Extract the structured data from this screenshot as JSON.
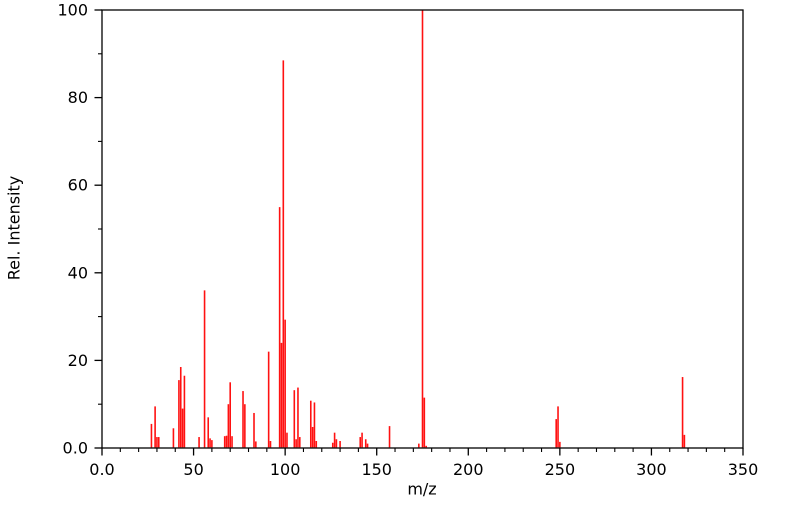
{
  "chart_data": {
    "type": "bar",
    "variant": "mass-spectrum",
    "title": "",
    "xlabel": "m/z",
    "ylabel": "Rel. Intensity",
    "xlim": [
      0,
      350
    ],
    "ylim": [
      0,
      100
    ],
    "x_major_tick_step": 50,
    "x_minor_tick_step": 10,
    "y_major_tick_step": 20,
    "y_minor_tick_step": 10,
    "x_tick_values": [
      0,
      50,
      100,
      150,
      200,
      250,
      300,
      350
    ],
    "x_tick_labels": [
      "0.0",
      "50",
      "100",
      "150",
      "200",
      "250",
      "300",
      "350"
    ],
    "y_tick_values": [
      0,
      20,
      40,
      60,
      80,
      100
    ],
    "y_tick_labels": [
      "0.0",
      "20",
      "40",
      "60",
      "80",
      "100"
    ],
    "grid": "off",
    "legend": "none",
    "bar_color": "#ff1111",
    "axis_color": "#000000",
    "background": "#ffffff",
    "peaks": [
      [
        27,
        5.5
      ],
      [
        29,
        9.5
      ],
      [
        30,
        2.5
      ],
      [
        31,
        2.5
      ],
      [
        39,
        4.5
      ],
      [
        42,
        15.5
      ],
      [
        43,
        18.5
      ],
      [
        44,
        9
      ],
      [
        45,
        16.5
      ],
      [
        53,
        2.5
      ],
      [
        56,
        36
      ],
      [
        58,
        7
      ],
      [
        59,
        2.2
      ],
      [
        60,
        1.8
      ],
      [
        67,
        2.7
      ],
      [
        68,
        2.8
      ],
      [
        69,
        10
      ],
      [
        70,
        15
      ],
      [
        71,
        2.7
      ],
      [
        77,
        13
      ],
      [
        78,
        10
      ],
      [
        83,
        8
      ],
      [
        84,
        1.5
      ],
      [
        91,
        22
      ],
      [
        92,
        1.6
      ],
      [
        97,
        55
      ],
      [
        98,
        24
      ],
      [
        99,
        88.5
      ],
      [
        100,
        29.3
      ],
      [
        101,
        3.5
      ],
      [
        105,
        13.2
      ],
      [
        106,
        2
      ],
      [
        107,
        13.8
      ],
      [
        108,
        2.5
      ],
      [
        114,
        10.8
      ],
      [
        115,
        4.8
      ],
      [
        116,
        10.4
      ],
      [
        117,
        1.6
      ],
      [
        126,
        1.2
      ],
      [
        127,
        3.5
      ],
      [
        128,
        2
      ],
      [
        130,
        1.6
      ],
      [
        141,
        2.5
      ],
      [
        142,
        3.5
      ],
      [
        144,
        2
      ],
      [
        145,
        1
      ],
      [
        157,
        5
      ],
      [
        173,
        1
      ],
      [
        175,
        100
      ],
      [
        176,
        11.5
      ],
      [
        177,
        0.5
      ],
      [
        248,
        6.6
      ],
      [
        249,
        9.5
      ],
      [
        250,
        1.4
      ],
      [
        317,
        16.2
      ],
      [
        318,
        3
      ]
    ]
  }
}
